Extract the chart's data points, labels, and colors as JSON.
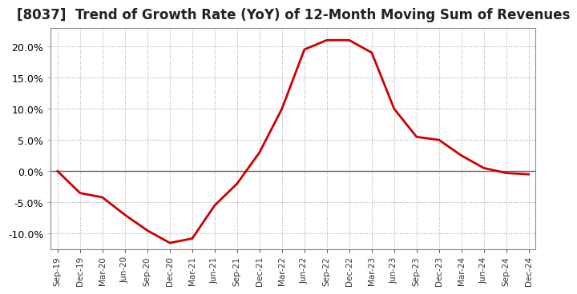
{
  "title": "[8037]  Trend of Growth Rate (YoY) of 12-Month Moving Sum of Revenues",
  "x_labels": [
    "Sep-19",
    "Dec-19",
    "Mar-20",
    "Jun-20",
    "Sep-20",
    "Dec-20",
    "Mar-21",
    "Jun-21",
    "Sep-21",
    "Dec-21",
    "Mar-22",
    "Jun-22",
    "Sep-22",
    "Dec-22",
    "Mar-23",
    "Jun-23",
    "Sep-23",
    "Dec-23",
    "Mar-24",
    "Jun-24",
    "Sep-24",
    "Dec-24"
  ],
  "y_values": [
    0.0,
    -3.5,
    -4.2,
    -7.0,
    -9.5,
    -11.5,
    -10.8,
    -5.5,
    -2.0,
    3.0,
    10.0,
    19.5,
    21.0,
    21.0,
    19.0,
    10.0,
    5.5,
    5.0,
    2.5,
    0.5,
    -0.3,
    -0.5
  ],
  "line_color": "#cc0000",
  "line_width": 2.0,
  "ylim": [
    -12.5,
    23.0
  ],
  "yticks": [
    -10.0,
    -5.0,
    0.0,
    5.0,
    10.0,
    15.0,
    20.0
  ],
  "background_color": "#ffffff",
  "grid_color": "#aaaaaa",
  "title_fontsize": 12,
  "zero_line_color": "#666666",
  "spine_color": "#888888"
}
